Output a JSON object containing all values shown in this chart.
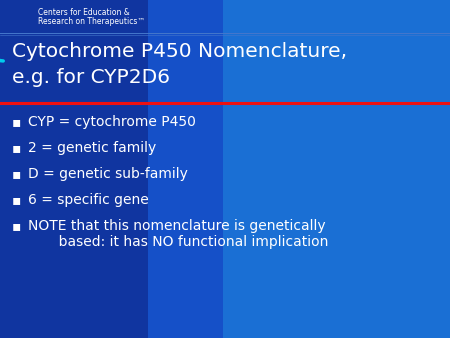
{
  "bg_color_main": "#1A6FD4",
  "bg_color_left_panel": "#1035A0",
  "bg_color_mid_panel": "#1550C8",
  "title_line1": "Cytochrome P450 Nomenclature,",
  "title_line2": "e.g. for CYP2D6",
  "title_color": "#FFFFFF",
  "title_fontsize": 14.5,
  "header_text_line1": "Centers for Education &",
  "header_text_line2": "Research on Therapeutics™",
  "header_fontsize": 5.5,
  "header_color": "#FFFFFF",
  "red_line_color": "#EE1111",
  "bullet_color": "#FFFFFF",
  "bullet_fontsize": 10,
  "bullets": [
    "CYP = cytochrome P450",
    "2 = genetic family",
    "D = genetic sub-family",
    "6 = specific gene",
    "NOTE that this nomenclature is genetically\n       based: it has NO functional implication"
  ],
  "bullet_symbol": "▪",
  "arc_color": "#00CCEE",
  "thin_line_color": "#4477CC",
  "fig_width": 4.5,
  "fig_height": 3.38,
  "dpi": 100
}
